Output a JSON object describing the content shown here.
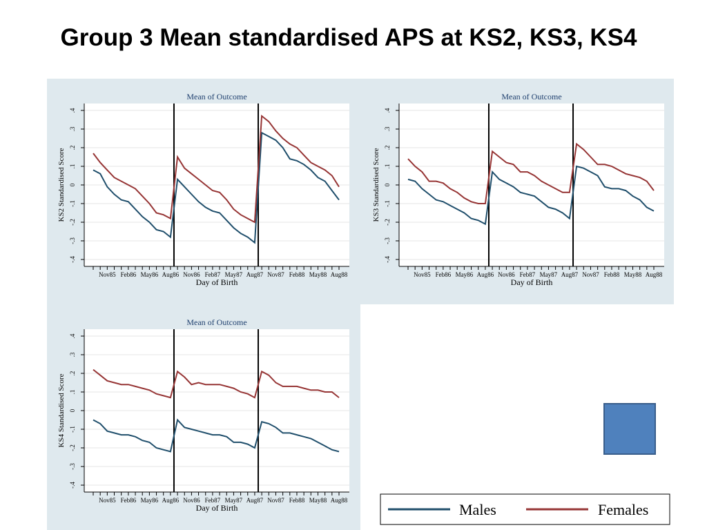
{
  "title": "Group 3 Mean standardised APS at KS2, KS3, KS4",
  "chart_data": [
    {
      "type": "line",
      "title": "Mean of Outcome",
      "x_label": "Day of Birth",
      "y_label": "KS2 Standardised Score",
      "categories": [
        null,
        null,
        "Nov85",
        null,
        null,
        "Feb86",
        null,
        null,
        "May86",
        null,
        null,
        "Aug86",
        null,
        null,
        "Nov86",
        null,
        null,
        "Feb87",
        null,
        null,
        "May87",
        null,
        null,
        "Aug87",
        null,
        null,
        "Nov87",
        null,
        null,
        "Feb88",
        null,
        null,
        "May88",
        null,
        null,
        "Aug88"
      ],
      "ylim": [
        -0.4,
        0.4
      ],
      "yticks": [
        {
          "value": -0.4,
          "label": "-.4"
        },
        {
          "value": -0.3,
          "label": "-.3"
        },
        {
          "value": -0.2,
          "label": "-.2"
        },
        {
          "value": -0.1,
          "label": "-.1"
        },
        0,
        {
          "value": 0.1,
          "label": ".1"
        },
        {
          "value": 0.2,
          "label": ".2"
        },
        {
          "value": 0.3,
          "label": ".3"
        },
        {
          "value": 0.4,
          "label": ".4"
        }
      ],
      "grid": true,
      "series": [
        {
          "name": "Males",
          "color": "#1f4e6b",
          "values": [
            0.08,
            0.06,
            -0.01,
            -0.05,
            -0.08,
            -0.09,
            -0.13,
            -0.17,
            -0.2,
            -0.24,
            -0.25,
            -0.28,
            0.03,
            -0.01,
            -0.05,
            -0.09,
            -0.12,
            -0.14,
            -0.15,
            -0.19,
            -0.23,
            -0.26,
            -0.28,
            -0.31,
            0.28,
            0.26,
            0.24,
            0.2,
            0.14,
            0.13,
            0.11,
            0.08,
            0.04,
            0.02,
            -0.03,
            -0.08
          ]
        },
        {
          "name": "Females",
          "color": "#963434",
          "values": [
            0.17,
            0.12,
            0.08,
            0.04,
            0.02,
            0.0,
            -0.02,
            -0.06,
            -0.1,
            -0.15,
            -0.16,
            -0.18,
            0.15,
            0.09,
            0.06,
            0.03,
            0.0,
            -0.03,
            -0.04,
            -0.08,
            -0.13,
            -0.16,
            -0.18,
            -0.2,
            0.37,
            0.34,
            0.29,
            0.25,
            0.22,
            0.2,
            0.16,
            0.12,
            0.1,
            0.08,
            0.05,
            -0.01
          ]
        }
      ]
    },
    {
      "type": "line",
      "title": "Mean of Outcome",
      "x_label": "Day of Birth",
      "y_label": "KS3 Standardised Score",
      "categories": [
        null,
        null,
        "Nov85",
        null,
        null,
        "Feb86",
        null,
        null,
        "May86",
        null,
        null,
        "Aug86",
        null,
        null,
        "Nov86",
        null,
        null,
        "Feb87",
        null,
        null,
        "May87",
        null,
        null,
        "Aug87",
        null,
        null,
        "Nov87",
        null,
        null,
        "Feb88",
        null,
        null,
        "May88",
        null,
        null,
        "Aug88"
      ],
      "ylim": [
        -0.4,
        0.4
      ],
      "yticks": [
        {
          "value": -0.4,
          "label": "-.4"
        },
        {
          "value": -0.3,
          "label": "-.3"
        },
        {
          "value": -0.2,
          "label": "-.2"
        },
        {
          "value": -0.1,
          "label": "-.1"
        },
        0,
        {
          "value": 0.1,
          "label": ".1"
        },
        {
          "value": 0.2,
          "label": ".2"
        },
        {
          "value": 0.3,
          "label": ".3"
        },
        {
          "value": 0.4,
          "label": ".4"
        }
      ],
      "grid": true,
      "series": [
        {
          "name": "Males",
          "color": "#1f4e6b",
          "values": [
            0.03,
            0.02,
            -0.02,
            -0.05,
            -0.08,
            -0.09,
            -0.11,
            -0.13,
            -0.15,
            -0.18,
            -0.19,
            -0.21,
            0.07,
            0.03,
            0.01,
            -0.01,
            -0.04,
            -0.05,
            -0.06,
            -0.09,
            -0.12,
            -0.13,
            -0.15,
            -0.18,
            0.1,
            0.09,
            0.07,
            0.05,
            -0.01,
            -0.02,
            -0.02,
            -0.03,
            -0.06,
            -0.08,
            -0.12,
            -0.14
          ]
        },
        {
          "name": "Females",
          "color": "#963434",
          "values": [
            0.14,
            0.1,
            0.07,
            0.02,
            0.02,
            0.01,
            -0.02,
            -0.04,
            -0.07,
            -0.09,
            -0.1,
            -0.1,
            0.18,
            0.15,
            0.12,
            0.11,
            0.07,
            0.07,
            0.05,
            0.02,
            0.0,
            -0.02,
            -0.04,
            -0.04,
            0.22,
            0.19,
            0.15,
            0.11,
            0.11,
            0.1,
            0.08,
            0.06,
            0.05,
            0.04,
            0.02,
            -0.03
          ]
        }
      ]
    },
    {
      "type": "line",
      "title": "Mean of Outcome",
      "x_label": "Day of Birth",
      "y_label": "KS4 Standardised Score",
      "categories": [
        null,
        null,
        "Nov85",
        null,
        null,
        "Feb86",
        null,
        null,
        "May86",
        null,
        null,
        "Aug86",
        null,
        null,
        "Nov86",
        null,
        null,
        "Feb87",
        null,
        null,
        "May87",
        null,
        null,
        "Aug87",
        null,
        null,
        "Nov87",
        null,
        null,
        "Feb88",
        null,
        null,
        "May88",
        null,
        null,
        "Aug88"
      ],
      "ylim": [
        -0.4,
        0.4
      ],
      "yticks": [
        {
          "value": -0.4,
          "label": "-.4"
        },
        {
          "value": -0.3,
          "label": "-.3"
        },
        {
          "value": -0.2,
          "label": "-.2"
        },
        {
          "value": -0.1,
          "label": "-.1"
        },
        0,
        {
          "value": 0.1,
          "label": ".1"
        },
        {
          "value": 0.2,
          "label": ".2"
        },
        {
          "value": 0.3,
          "label": ".3"
        },
        {
          "value": 0.4,
          "label": ".4"
        }
      ],
      "grid": true,
      "series": [
        {
          "name": "Males",
          "color": "#1f4e6b",
          "values": [
            -0.05,
            -0.07,
            -0.11,
            -0.12,
            -0.13,
            -0.13,
            -0.14,
            -0.16,
            -0.17,
            -0.2,
            -0.21,
            -0.22,
            -0.05,
            -0.09,
            -0.1,
            -0.11,
            -0.12,
            -0.13,
            -0.13,
            -0.14,
            -0.17,
            -0.17,
            -0.18,
            -0.2,
            -0.06,
            -0.07,
            -0.09,
            -0.12,
            -0.12,
            -0.13,
            -0.14,
            -0.15,
            -0.17,
            -0.19,
            -0.21,
            -0.22
          ]
        },
        {
          "name": "Females",
          "color": "#963434",
          "values": [
            0.22,
            0.19,
            0.16,
            0.15,
            0.14,
            0.14,
            0.13,
            0.12,
            0.11,
            0.09,
            0.08,
            0.07,
            0.21,
            0.18,
            0.14,
            0.15,
            0.14,
            0.14,
            0.14,
            0.13,
            0.12,
            0.1,
            0.09,
            0.07,
            0.21,
            0.19,
            0.15,
            0.13,
            0.13,
            0.13,
            0.12,
            0.11,
            0.11,
            0.1,
            0.1,
            0.07
          ]
        }
      ]
    }
  ]
}
